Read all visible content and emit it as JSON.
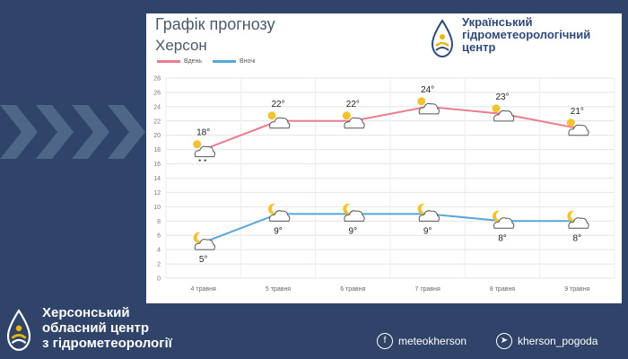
{
  "title": "Графік прогнозу",
  "subtitle": "Херсон",
  "org": {
    "name_lines": [
      "Український",
      "гідрометеорологічний",
      "центр"
    ],
    "logo_icon": "drop-sun-logo-icon"
  },
  "legend": [
    {
      "label": "Вдень",
      "color": "#e87d8f"
    },
    {
      "label": "Вночі",
      "color": "#5aa6d6"
    }
  ],
  "footer": {
    "title_lines": [
      "Херсонський",
      "обласний центр",
      "з гідрометеорології"
    ],
    "social": [
      {
        "icon": "facebook-icon",
        "glyph": "f",
        "label": "meteokherson"
      },
      {
        "icon": "telegram-icon",
        "glyph": "➤",
        "label": "kherson_pogoda"
      }
    ]
  },
  "chart_data": {
    "type": "line",
    "categories": [
      "4 травня",
      "5 травня",
      "6 травня",
      "7 травня",
      "8 травня",
      "9 травня"
    ],
    "series": [
      {
        "name": "Вдень",
        "values": [
          18,
          22,
          22,
          24,
          23,
          21
        ],
        "labels": [
          "18°",
          "22°",
          "22°",
          "24°",
          "23°",
          "21°"
        ],
        "color": "#e87d8f",
        "icons": [
          "sun-cloud-rain-icon",
          "sun-cloud-icon",
          "sun-cloud-icon",
          "sun-cloud-icon",
          "sun-cloud-icon",
          "sun-cloud-icon"
        ]
      },
      {
        "name": "Вночі",
        "values": [
          5,
          9,
          9,
          9,
          8,
          8
        ],
        "labels": [
          "5°",
          "9°",
          "9°",
          "9°",
          "8°",
          "8°"
        ],
        "color": "#5aa6d6",
        "icons": [
          "moon-cloud-icon",
          "moon-cloud-icon",
          "moon-cloud-icon",
          "moon-cloud-icon",
          "moon-cloud-icon",
          "moon-cloud-icon"
        ]
      }
    ],
    "ylim": [
      0,
      28
    ],
    "yticks": [
      0,
      2,
      4,
      6,
      8,
      10,
      12,
      14,
      16,
      18,
      20,
      22,
      24,
      26,
      28
    ],
    "grid": true,
    "legend_position": "top-left"
  }
}
